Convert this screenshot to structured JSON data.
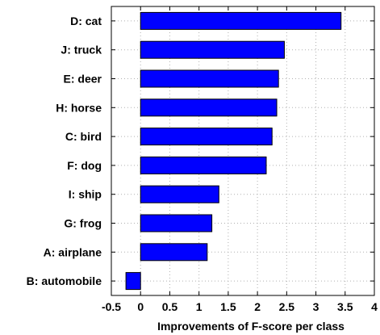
{
  "chart_data": {
    "type": "bar",
    "orientation": "horizontal",
    "categories": [
      "D: cat",
      "J: truck",
      "E: deer",
      "H: horse",
      "C: bird",
      "F: dog",
      "I: ship",
      "G: frog",
      "A: airplane",
      "B: automobile"
    ],
    "values": [
      3.43,
      2.46,
      2.36,
      2.33,
      2.25,
      2.15,
      1.34,
      1.22,
      1.14,
      -0.25
    ],
    "xlabel": "Improvements of F-score per class",
    "ylabel": "",
    "title": "",
    "xlim": [
      -0.5,
      4
    ],
    "xticks": [
      "-0.5",
      "0",
      "0.5",
      "1",
      "1.5",
      "2",
      "2.5",
      "3",
      "3.5",
      "4"
    ],
    "grid": true,
    "bar_color": "#0000ff",
    "bar_edge_color": "#000000"
  }
}
